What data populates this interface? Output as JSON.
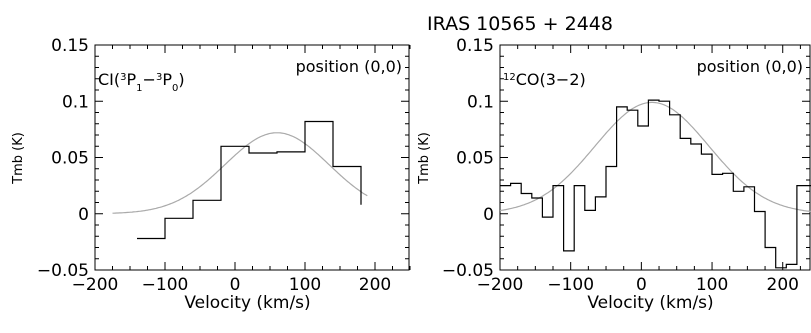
{
  "figure_title": "IRAS 10565 + 2448",
  "chart_data": [
    {
      "type": "line",
      "species_html": "CI(<tspan baseline-shift=\"super\" font-size=\"10\">3</tspan>P<tspan baseline-shift=\"sub\" font-size=\"10\">1</tspan>−<tspan baseline-shift=\"super\" font-size=\"10\">3</tspan>P<tspan baseline-shift=\"sub\" font-size=\"10\">0</tspan>)",
      "species_text": "CI(3P1−3P0)",
      "position_label": "position (0,0)",
      "xlabel": "Velocity (km/s)",
      "ylabel": "Tmb (K)",
      "xlim": [
        -200,
        250
      ],
      "ylim": [
        -0.05,
        0.15
      ],
      "xticks": [
        -200,
        -100,
        0,
        100,
        200
      ],
      "yticks": [
        -0.05,
        0,
        0.05,
        0.1,
        0.15
      ],
      "ytick_labels": [
        "−0.05",
        "0",
        "0.05",
        "0.1",
        "0.15"
      ],
      "xtick_labels": [
        "−200",
        "−100",
        "0",
        "100",
        "200"
      ],
      "histogram": {
        "edges": [
          -140,
          -100,
          -60,
          -20,
          20,
          60,
          100,
          140,
          180
        ],
        "values": [
          -0.022,
          -0.004,
          0.012,
          0.06,
          0.054,
          0.055,
          0.082,
          0.042,
          0.008
        ]
      },
      "gaussian_fit": {
        "amplitude": 0.072,
        "center": 60,
        "fwhm": 175,
        "x_range": [
          -175,
          190
        ]
      }
    },
    {
      "type": "line",
      "species_html": "<tspan baseline-shift=\"super\" font-size=\"10\">12</tspan>CO(3−2)",
      "species_text": "12CO(3−2)",
      "position_label": "position (0,0)",
      "xlabel": "Velocity (km/s)",
      "ylabel": "Tmb (K)",
      "xlim": [
        -200,
        240
      ],
      "ylim": [
        -0.05,
        0.15
      ],
      "xticks": [
        -200,
        -100,
        0,
        100,
        200
      ],
      "yticks": [
        -0.05,
        0,
        0.05,
        0.1,
        0.15
      ],
      "ytick_labels": [
        "−0.05",
        "0",
        "0.05",
        "0.1",
        "0.15"
      ],
      "xtick_labels": [
        "−200",
        "−100",
        "0",
        "100",
        "200"
      ],
      "histogram": {
        "edges": [
          -200,
          -185,
          -170,
          -155,
          -140,
          -125,
          -110,
          -95,
          -80,
          -65,
          -50,
          -35,
          -20,
          -5,
          10,
          25,
          40,
          55,
          70,
          85,
          100,
          115,
          130,
          145,
          160,
          175,
          190,
          205,
          220,
          235,
          240
        ],
        "values": [
          0.025,
          0.027,
          0.018,
          0.014,
          -0.003,
          0.025,
          -0.033,
          0.025,
          0.003,
          0.015,
          0.042,
          0.095,
          0.092,
          0.078,
          0.101,
          0.1,
          0.088,
          0.067,
          0.062,
          0.053,
          0.035,
          0.036,
          0.02,
          0.024,
          0.002,
          -0.03,
          -0.048,
          -0.045,
          0.025,
          0.025,
          0.025
        ]
      },
      "gaussian_fit": {
        "amplitude": 0.099,
        "center": 15,
        "fwhm": 190,
        "x_range": [
          -200,
          240
        ]
      }
    }
  ]
}
